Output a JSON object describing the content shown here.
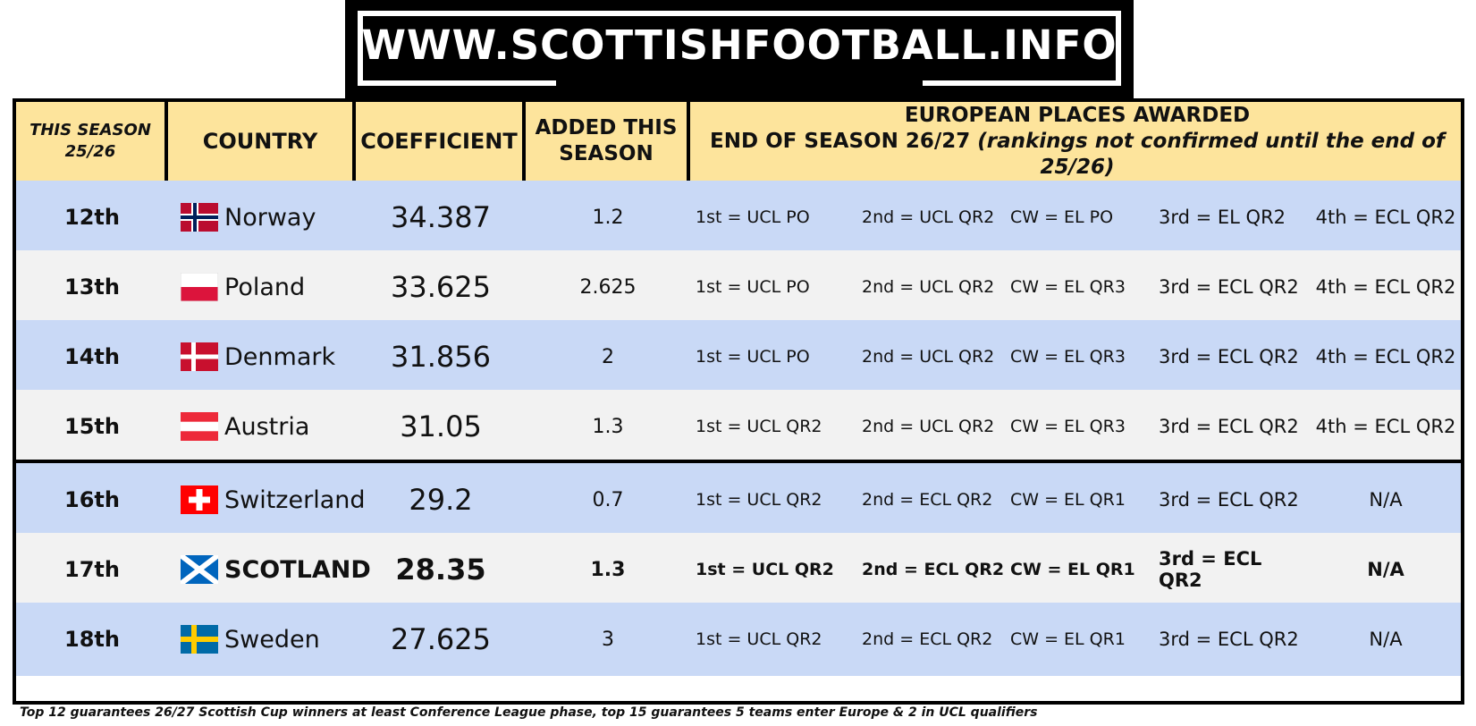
{
  "banner": {
    "text": "WWW.SCOTTISHFOOTBALL.INFO"
  },
  "headers": {
    "season_line1": "THIS SEASON",
    "season_line2": "25/26",
    "country": "COUNTRY",
    "coefficient": "COEFFICIENT",
    "added_line1": "ADDED THIS",
    "added_line2": "SEASON",
    "places_line1": "EUROPEAN PLACES AWARDED",
    "places_line2_prefix": "END OF SEASON 26/27 ",
    "places_line2_italic": "(rankings not confirmed until the end of 25/26)"
  },
  "rows": [
    {
      "rank": "12th",
      "country": "Norway",
      "flag": "norway-flag",
      "coefficient": "34.387",
      "added": "1.2",
      "places": [
        "1st = UCL PO",
        "2nd = UCL QR2",
        "CW = EL PO",
        "3rd = EL QR2",
        "4th = ECL QR2"
      ]
    },
    {
      "rank": "13th",
      "country": "Poland",
      "flag": "poland-flag",
      "coefficient": "33.625",
      "added": "2.625",
      "places": [
        "1st = UCL PO",
        "2nd = UCL QR2",
        "CW = EL QR3",
        "3rd = ECL QR2",
        "4th = ECL QR2"
      ]
    },
    {
      "rank": "14th",
      "country": "Denmark",
      "flag": "denmark-flag",
      "coefficient": "31.856",
      "added": "2",
      "places": [
        "1st = UCL PO",
        "2nd = UCL QR2",
        "CW = EL QR3",
        "3rd = ECL QR2",
        "4th = ECL QR2"
      ]
    },
    {
      "rank": "15th",
      "country": "Austria",
      "flag": "austria-flag",
      "coefficient": "31.05",
      "added": "1.3",
      "places": [
        "1st = UCL QR2",
        "2nd = UCL QR2",
        "CW = EL QR3",
        "3rd = ECL QR2",
        "4th = ECL QR2"
      ]
    },
    {
      "rank": "16th",
      "country": "Switzerland",
      "flag": "switzerland-flag",
      "coefficient": "29.2",
      "added": "0.7",
      "places": [
        "1st = UCL QR2",
        "2nd = ECL QR2",
        "CW = EL QR1",
        "3rd = ECL QR2",
        "N/A"
      ]
    },
    {
      "rank": "17th",
      "country": "SCOTLAND",
      "flag": "scotland-flag",
      "coefficient": "28.35",
      "added": "1.3",
      "places": [
        "1st = UCL QR2",
        "2nd = ECL QR2",
        "CW = EL QR1",
        "3rd = ECL QR2",
        "N/A"
      ]
    },
    {
      "rank": "18th",
      "country": "Sweden",
      "flag": "sweden-flag",
      "coefficient": "27.625",
      "added": "3",
      "places": [
        "1st = UCL QR2",
        "2nd = ECL QR2",
        "CW = EL QR1",
        "3rd = ECL QR2",
        "N/A"
      ]
    }
  ],
  "colors": {
    "header": "#fde49c",
    "row_blue": "#c9d9f6",
    "row_grey": "#f2f2f2"
  },
  "footnote": "Top 12 guarantees 26/27 Scottish Cup winners at least Conference League phase, top 15 guarantees 5 teams enter Europe & 2 in UCL qualifiers"
}
